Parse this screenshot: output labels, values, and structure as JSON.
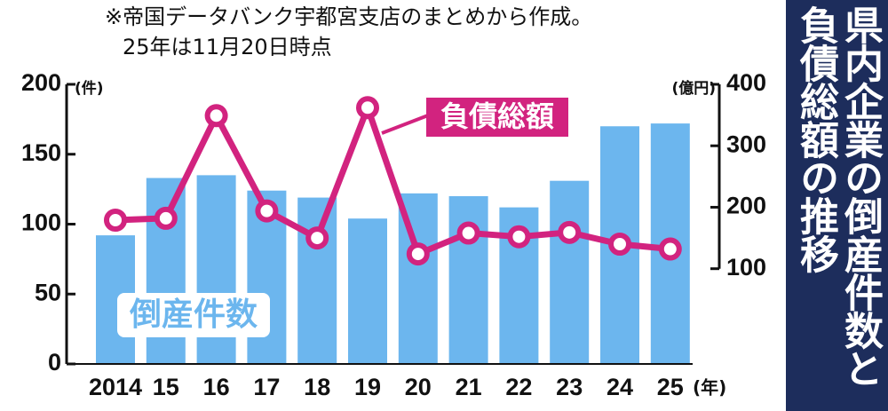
{
  "chart_data": {
    "type": "bar",
    "title": "県内企業の倒産件数と負債総額の推移",
    "notes": [
      "※帝国データバンク宇都宮支店のまとめから作成。",
      "25年は11月20日時点"
    ],
    "categories": [
      "2014",
      "15",
      "16",
      "17",
      "18",
      "19",
      "20",
      "21",
      "22",
      "23",
      "24",
      "25"
    ],
    "x_unit": "(年)",
    "y_unit": "(件)",
    "y2_unit": "(億円)",
    "series": [
      {
        "name": "倒産件数",
        "type": "bar",
        "color": "#6cb6ee",
        "values": [
          92,
          133,
          135,
          124,
          119,
          104,
          122,
          120,
          112,
          131,
          170,
          172
        ]
      },
      {
        "name": "負債総額",
        "type": "line",
        "axis": "y2",
        "color": "#d2237f",
        "values": [
          179,
          182,
          349,
          194,
          150,
          362,
          124,
          158,
          152,
          159,
          140,
          132
        ]
      }
    ],
    "ylim": [
      0,
      200
    ],
    "yticks": [
      0,
      50,
      100,
      150,
      200
    ],
    "y2lim": [
      -55,
      400
    ],
    "y2ticks": [
      100,
      200,
      300,
      400
    ]
  }
}
